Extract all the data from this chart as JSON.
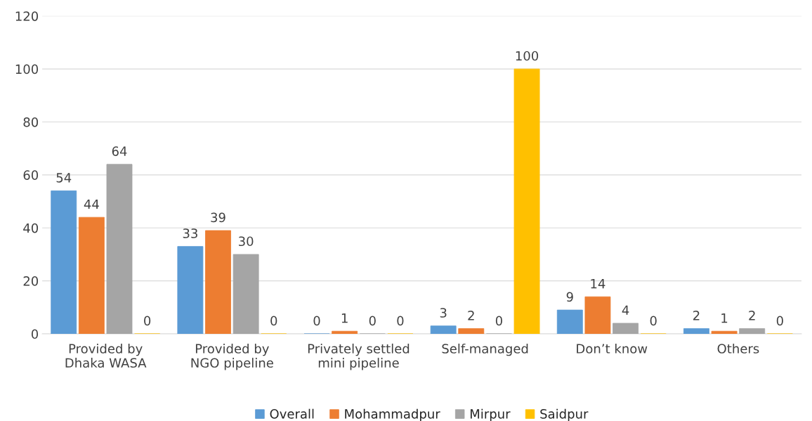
{
  "chart_data": {
    "type": "bar",
    "categories": [
      "Provided by\nDhaka WASA",
      "Provided by\nNGO pipeline",
      "Privately settled\nmini pipeline",
      "Self-managed",
      "Don’t know",
      "Others"
    ],
    "series": [
      {
        "name": "Overall",
        "color": "#5b9bd5",
        "values": [
          54,
          33,
          0,
          3,
          9,
          2
        ]
      },
      {
        "name": "Mohammadpur",
        "color": "#ed7d31",
        "values": [
          44,
          39,
          1,
          2,
          14,
          1
        ]
      },
      {
        "name": "Mirpur",
        "color": "#a5a5a5",
        "values": [
          64,
          30,
          0,
          0,
          4,
          2
        ]
      },
      {
        "name": "Saidpur",
        "color": "#ffc000",
        "values": [
          0,
          0,
          0,
          100,
          0,
          0
        ]
      }
    ],
    "ylim": [
      0,
      120
    ],
    "yticks": [
      0,
      20,
      40,
      60,
      80,
      100,
      120
    ],
    "grid": "y",
    "legend": "bottom",
    "data_labels": true
  }
}
